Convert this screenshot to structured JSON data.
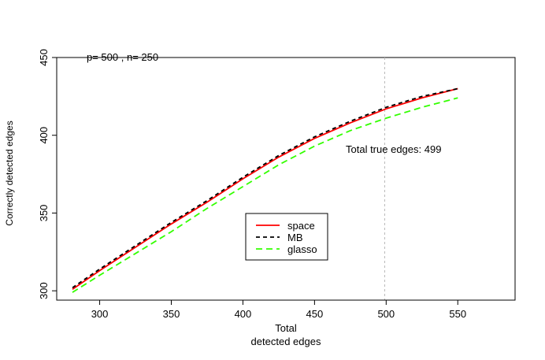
{
  "chart_data": {
    "type": "line",
    "title": "",
    "annotation_top": "p= 500 , n= 250",
    "annotation_right": "Total true edges: 499",
    "xlabel_line1": "Total",
    "xlabel_line2": "detected edges",
    "ylabel": "Correctly detected edges",
    "xlim": [
      270,
      590
    ],
    "ylim": [
      294,
      450
    ],
    "x_ticks": [
      300,
      350,
      400,
      450,
      500,
      550
    ],
    "y_ticks": [
      300,
      350,
      400,
      450
    ],
    "reference_vline": 499,
    "legend_position": "center",
    "series": [
      {
        "name": "space",
        "color": "#ff0000",
        "dash": "solid",
        "x": [
          281,
          300,
          325,
          350,
          375,
          400,
          425,
          450,
          475,
          500,
          525,
          550
        ],
        "y": [
          301,
          313,
          328,
          343,
          357,
          372,
          386,
          398,
          408,
          417,
          424,
          430
        ]
      },
      {
        "name": "MB",
        "color": "#000000",
        "dash": "dashed",
        "x": [
          281,
          300,
          325,
          350,
          375,
          400,
          425,
          450,
          475,
          500,
          525,
          550
        ],
        "y": [
          302,
          314,
          329,
          344,
          358,
          373,
          387,
          399,
          409,
          418,
          425,
          430
        ]
      },
      {
        "name": "glasso",
        "color": "#33ff00",
        "dash": "dashed",
        "x": [
          281,
          300,
          325,
          350,
          375,
          400,
          425,
          450,
          475,
          500,
          525,
          550
        ],
        "y": [
          299,
          310,
          324,
          338,
          353,
          367,
          381,
          393,
          403,
          411,
          418,
          424
        ]
      }
    ]
  }
}
